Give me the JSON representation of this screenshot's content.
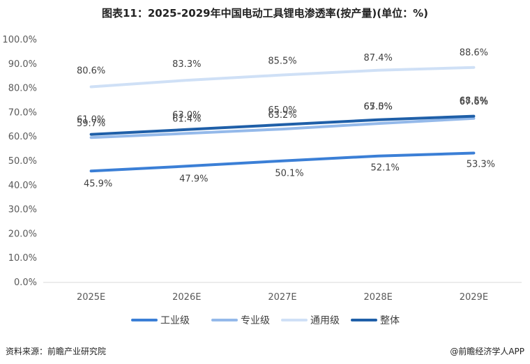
{
  "title": "图表11：2025-2029年中国电动工具锂电渗透率(按产量)(单位：%)",
  "chart_data": {
    "type": "line",
    "categories": [
      "2025E",
      "2026E",
      "2027E",
      "2028E",
      "2029E"
    ],
    "y_ticks": [
      "0.0%",
      "10.0%",
      "20.0%",
      "30.0%",
      "40.0%",
      "50.0%",
      "60.0%",
      "70.0%",
      "80.0%",
      "90.0%",
      "100.0%"
    ],
    "ylim": [
      0,
      100
    ],
    "grid": false,
    "legend_position": "bottom",
    "series": [
      {
        "name": "工业级",
        "color": "#3b7fd6",
        "values": [
          45.9,
          47.9,
          50.1,
          52.1,
          53.3
        ],
        "labels": [
          "45.9%",
          "47.9%",
          "50.1%",
          "52.1%",
          "53.3%"
        ]
      },
      {
        "name": "专业级",
        "color": "#94b9ea",
        "values": [
          59.7,
          61.4,
          63.2,
          65.5,
          67.6
        ],
        "labels": [
          "59.7%",
          "61.4%",
          "63.2%",
          "65.5%",
          "67.6%"
        ]
      },
      {
        "name": "通用级",
        "color": "#cfe0f6",
        "values": [
          80.6,
          83.3,
          85.5,
          87.4,
          88.6
        ],
        "labels": [
          "80.6%",
          "83.3%",
          "85.5%",
          "87.4%",
          "88.6%"
        ]
      },
      {
        "name": "整体",
        "color": "#1f5fa8",
        "values": [
          61.0,
          63.0,
          65.0,
          67.0,
          68.5
        ],
        "labels": [
          "61.0%",
          "63.0%",
          "65.0%",
          "67.0%",
          "68.5%"
        ]
      }
    ]
  },
  "footer": {
    "source": "资料来源：前瞻产业研究院",
    "brand": "@前瞻经济学人APP"
  }
}
